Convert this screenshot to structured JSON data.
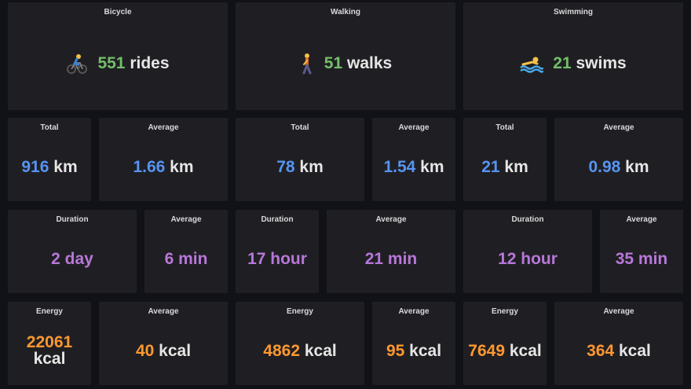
{
  "colors": {
    "count": "#73bf69",
    "distance": "#5794f2",
    "duration": "#b877d9",
    "energy": "#ff9830"
  },
  "bicycle": {
    "title": "Bicycle",
    "icon": "cyclist-icon",
    "count": "551",
    "count_unit": "rides",
    "total_label": "Total",
    "total_value": "916",
    "total_unit": "km",
    "avg_dist_label": "Average",
    "avg_dist_value": "1.66",
    "avg_dist_unit": "km",
    "duration_label": "Duration",
    "duration_value": "2 day",
    "avg_dur_label": "Average",
    "avg_dur_value": "6 min",
    "energy_label": "Energy",
    "energy_value": "22061",
    "energy_unit": "kcal",
    "avg_energy_label": "Average",
    "avg_energy_value": "40",
    "avg_energy_unit": "kcal"
  },
  "walking": {
    "title": "Walking",
    "icon": "walker-icon",
    "count": "51",
    "count_unit": "walks",
    "total_label": "Total",
    "total_value": "78",
    "total_unit": "km",
    "avg_dist_label": "Average",
    "avg_dist_value": "1.54",
    "avg_dist_unit": "km",
    "duration_label": "Duration",
    "duration_value": "17 hour",
    "avg_dur_label": "Average",
    "avg_dur_value": "21 min",
    "energy_label": "Energy",
    "energy_value": "4862",
    "energy_unit": "kcal",
    "avg_energy_label": "Average",
    "avg_energy_value": "95",
    "avg_energy_unit": "kcal"
  },
  "swimming": {
    "title": "Swimming",
    "icon": "swimmer-icon",
    "count": "21",
    "count_unit": "swims",
    "total_label": "Total",
    "total_value": "21",
    "total_unit": "km",
    "avg_dist_label": "Average",
    "avg_dist_value": "0.98",
    "avg_dist_unit": "km",
    "duration_label": "Duration",
    "duration_value": "12 hour",
    "avg_dur_label": "Average",
    "avg_dur_value": "35 min",
    "energy_label": "Energy",
    "energy_value": "7649",
    "energy_unit": "kcal",
    "avg_energy_label": "Average",
    "avg_energy_value": "364",
    "avg_energy_unit": "kcal"
  }
}
